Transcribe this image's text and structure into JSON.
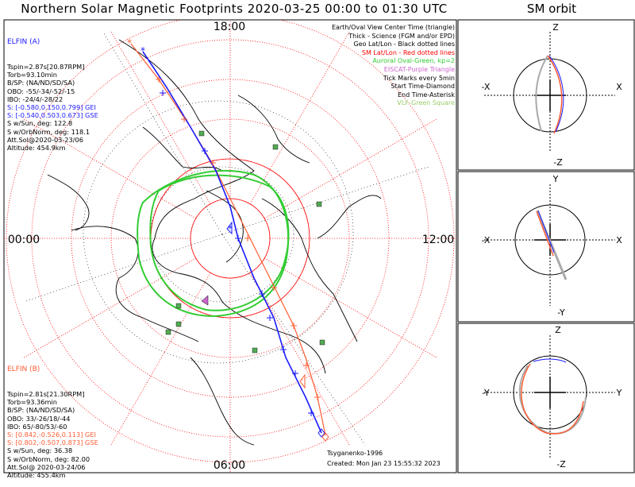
{
  "title": "Northern Solar Magnetic Footprints 2020-03-25 00:00 to 01:30 UTC",
  "sm_title": "SM orbit",
  "mlt_labels": {
    "top": "18:00",
    "left": "00:00",
    "right": "12:00",
    "bottom": "06:00"
  },
  "elfin_a": {
    "name": "ELFIN (A)",
    "color": "#1a1aff",
    "lines": [
      "Tspin=2.87s[20.87RPM]",
      "Torb=93.10min",
      "B/SP: (NA/ND/SD/SA)",
      "OBO: -55/-34/-52/-15",
      "IBO: -24/4/-28/22",
      "S: [-0.580,0.150,0.799] GEI",
      "S: [-0.540,0.503,0.673] GSE",
      "S w/Sun, deg: 122.8",
      "S w/OrbNorm, deg: 118.1",
      "Att.Sol@2020-03-23/06",
      "Altitude: 454.9km"
    ]
  },
  "elfin_b": {
    "name": "ELFIN (B)",
    "color": "#ff5c33",
    "lines": [
      "Tspin=2.81s[21.30RPM]",
      "Torb=93.36min",
      "B/SP: (NA/ND/SD/SA)",
      "OBO: 33/-26/18/-44",
      "IBO: 65/-80/53/-60",
      "S: [0.842,-0.526,0.113] GEI",
      "S: [0.802,-0.507,0.873] GSE",
      "S w/Sun, deg: 36.38",
      "S w/OrbNorm, deg: 82.00",
      "Att.Sol@ 2020-03-24/06",
      "Altitude: 455.4km"
    ]
  },
  "legend": [
    {
      "text": "Earth/Oval View Center Time (triangle)",
      "color": "#000000"
    },
    {
      "text": "Thick - Science (FGM and/or EPD)",
      "color": "#000000"
    },
    {
      "text": "Geo Lat/Lon - Black dotted lines",
      "color": "#000000"
    },
    {
      "text": "SM Lat/Lon - Red dotted lines",
      "color": "#ff0000"
    },
    {
      "text": "Auroral Oval-Green, kp=2",
      "color": "#33cc33"
    },
    {
      "text": "EISCAT-Purple Triangle",
      "color": "#cc66cc"
    },
    {
      "text": "Tick Marks every 5min",
      "color": "#000000"
    },
    {
      "text": "Start Time-Diamond",
      "color": "#000000"
    },
    {
      "text": "End Time-Asterisk",
      "color": "#000000"
    },
    {
      "text": "VLF-Green Square",
      "color": "#99cc66"
    }
  ],
  "model": "Tsyganenko-1996",
  "created": "Created: Mon Jan 23 15:55:32 2023",
  "panels": [
    {
      "top": "Z",
      "bottom": "-Z",
      "left": "-X",
      "right": "X"
    },
    {
      "top": "Y",
      "bottom": "-Y",
      "left": "-X",
      "right": "X"
    },
    {
      "top": "Z",
      "bottom": "-Z",
      "left": "-Y",
      "right": "Y"
    }
  ],
  "colors": {
    "a": "#1a1aff",
    "b": "#ff5c33",
    "oval": "#33cc33",
    "grid": "#ff0000",
    "orbit": "#aaaaaa"
  }
}
